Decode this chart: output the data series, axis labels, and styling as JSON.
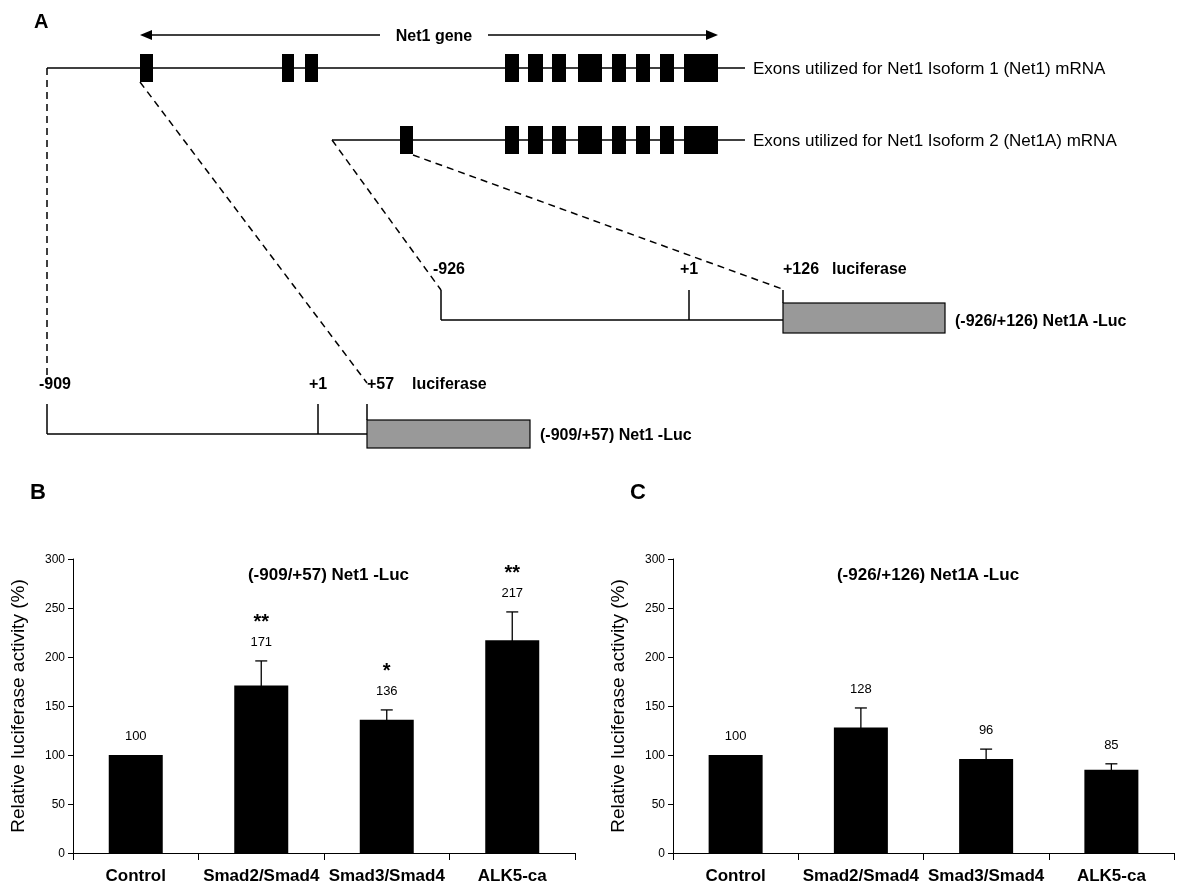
{
  "chart_data": [
    {
      "type": "other",
      "title": "A",
      "annotations": [
        "Net1 gene",
        "Exons utilized for Net1 Isoform 1 (Net1) mRNA",
        "Exons utilized for Net1 Isoform 2 (Net1A) mRNA",
        "-926",
        "+1",
        "+126",
        "luciferase",
        "(-926/+126) Net1A -Luc",
        "-909",
        "+1",
        "+57",
        "luciferase",
        "(-909/+57) Net1 -Luc"
      ]
    },
    {
      "type": "bar",
      "title": "(-909/+57) Net1 -Luc",
      "ylabel": "Relative luciferase activity (%)",
      "categories": [
        "Control",
        "Smad2/Smad4",
        "Smad3/Smad4",
        "ALK5-ca"
      ],
      "values": [
        100,
        171,
        136,
        217
      ],
      "errors": [
        null,
        25,
        10,
        29
      ],
      "color": "#000000",
      "data_labels": true,
      "ylim": [
        0,
        300
      ],
      "yticks": [
        0,
        50,
        100,
        150,
        200,
        250,
        300
      ],
      "grid": false,
      "annotations": [
        "B",
        {
          "text": "**",
          "x": "Smad2/Smad4",
          "y": 196
        },
        {
          "text": "*",
          "x": "Smad3/Smad4",
          "y": 146
        },
        {
          "text": "**",
          "x": "ALK5-ca",
          "y": 246
        }
      ]
    },
    {
      "type": "bar",
      "title": "(-926/+126) Net1A -Luc",
      "ylabel": "Relative luciferase activity (%)",
      "categories": [
        "Control",
        "Smad2/Smad4",
        "Smad3/Smad4",
        "ALK5-ca"
      ],
      "values": [
        100,
        128,
        96,
        85
      ],
      "errors": [
        null,
        20,
        10,
        6
      ],
      "color": "#000000",
      "data_labels": true,
      "ylim": [
        0,
        300
      ],
      "yticks": [
        0,
        50,
        100,
        150,
        200,
        250,
        300
      ],
      "grid": false,
      "annotations": [
        "C"
      ]
    }
  ]
}
